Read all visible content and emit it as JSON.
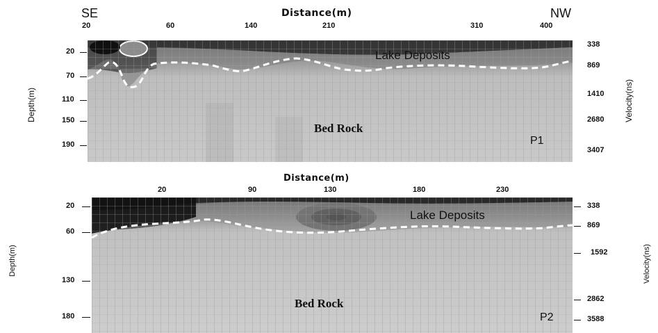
{
  "top_panel": {
    "direction_left": "SE",
    "direction_right": "NW",
    "x_axis_title": "Distance(m)",
    "x_ticks": [
      "20",
      "60",
      "140",
      "210",
      "310",
      "400"
    ],
    "y_ticks_left": [
      "20",
      "70",
      "110",
      "150",
      "190"
    ],
    "y_ticks_right": [
      "338",
      "869",
      "1410",
      "2680",
      "3407"
    ],
    "left_axis_label": "Depth(m)",
    "right_axis_label": "Velocity(ns)",
    "upper_layer": "Lake Deposits",
    "lower_layer": "Bed Rock",
    "panel_id": "P1"
  },
  "bottom_panel": {
    "x_axis_title": "Distance(m)",
    "x_ticks": [
      "20",
      "90",
      "130",
      "180",
      "230"
    ],
    "y_ticks_left": [
      "20",
      "60",
      "130",
      "180"
    ],
    "y_ticks_right": [
      "338",
      "869",
      "1592",
      "2862",
      "3588"
    ],
    "left_axis_label": "Depth(m)",
    "right_axis_label": "Velocity(ns)",
    "upper_layer": "Lake Deposits",
    "lower_layer": "Bed Rock",
    "panel_id": "P2"
  },
  "colors": {
    "interface_line": "#ffffff",
    "dark_layer": "#1c1c1c",
    "bedrock": "#c8c8c8"
  }
}
